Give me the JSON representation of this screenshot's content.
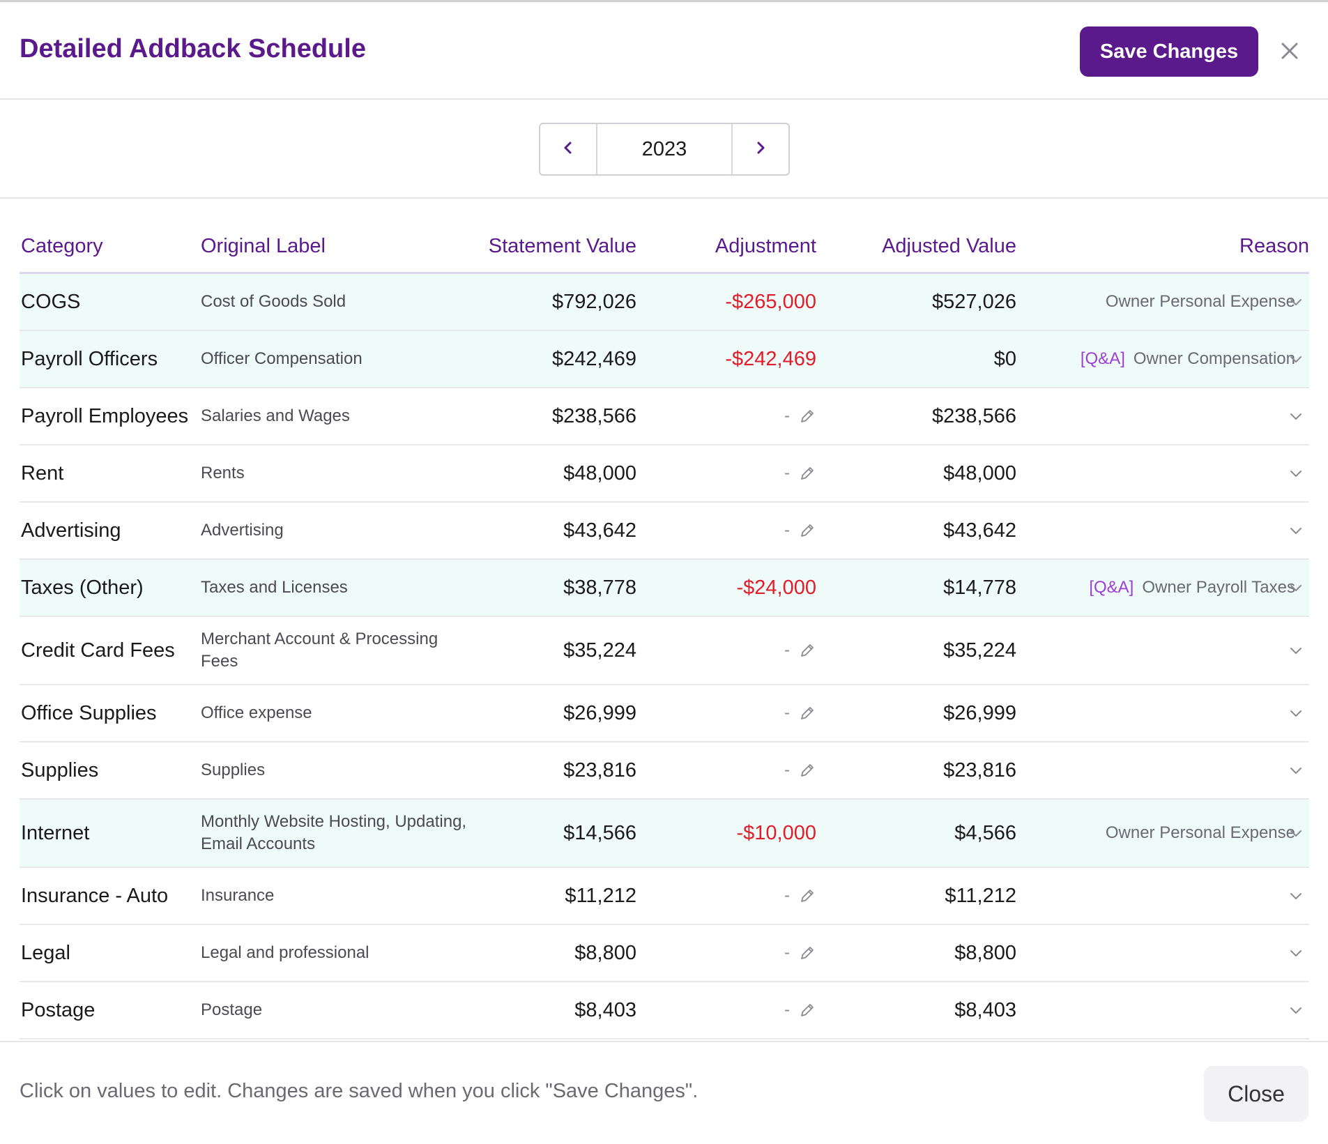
{
  "header": {
    "title": "Detailed Addback Schedule",
    "save_label": "Save Changes",
    "close_icon": "close-icon"
  },
  "year_nav": {
    "year": "2023",
    "prev_icon": "chevron-left-icon",
    "next_icon": "chevron-right-icon"
  },
  "table": {
    "columns": [
      "Category",
      "Original Label",
      "Statement Value",
      "Adjustment",
      "Adjusted Value",
      "Reason"
    ],
    "rows": [
      {
        "category": "COGS",
        "original": "Cost of Goods Sold",
        "statement": "$792,026",
        "adjustment": "-$265,000",
        "adjusted": "$527,026",
        "qa": "",
        "reason": "Owner Personal Expense"
      },
      {
        "category": "Payroll Officers",
        "original": "Officer Compensation",
        "statement": "$242,469",
        "adjustment": "-$242,469",
        "adjusted": "$0",
        "qa": "[Q&A]",
        "reason": "Owner Compensation"
      },
      {
        "category": "Payroll Employees",
        "original": "Salaries and Wages",
        "statement": "$238,566",
        "adjustment": "-",
        "adjusted": "$238,566",
        "qa": "",
        "reason": ""
      },
      {
        "category": "Rent",
        "original": "Rents",
        "statement": "$48,000",
        "adjustment": "-",
        "adjusted": "$48,000",
        "qa": "",
        "reason": ""
      },
      {
        "category": "Advertising",
        "original": "Advertising",
        "statement": "$43,642",
        "adjustment": "-",
        "adjusted": "$43,642",
        "qa": "",
        "reason": ""
      },
      {
        "category": "Taxes (Other)",
        "original": "Taxes and Licenses",
        "statement": "$38,778",
        "adjustment": "-$24,000",
        "adjusted": "$14,778",
        "qa": "[Q&A]",
        "reason": "Owner Payroll Taxes"
      },
      {
        "category": "Credit Card Fees",
        "original": "Merchant Account & Processing Fees",
        "statement": "$35,224",
        "adjustment": "-",
        "adjusted": "$35,224",
        "qa": "",
        "reason": ""
      },
      {
        "category": "Office Supplies",
        "original": "Office expense",
        "statement": "$26,999",
        "adjustment": "-",
        "adjusted": "$26,999",
        "qa": "",
        "reason": ""
      },
      {
        "category": "Supplies",
        "original": "Supplies",
        "statement": "$23,816",
        "adjustment": "-",
        "adjusted": "$23,816",
        "qa": "",
        "reason": ""
      },
      {
        "category": "Internet",
        "original": "Monthly Website Hosting, Updating, Email Accounts",
        "statement": "$14,566",
        "adjustment": "-$10,000",
        "adjusted": "$4,566",
        "qa": "",
        "reason": "Owner Personal Expense"
      },
      {
        "category": "Insurance - Auto",
        "original": "Insurance",
        "statement": "$11,212",
        "adjustment": "-",
        "adjusted": "$11,212",
        "qa": "",
        "reason": ""
      },
      {
        "category": "Legal",
        "original": "Legal and professional",
        "statement": "$8,800",
        "adjustment": "-",
        "adjusted": "$8,800",
        "qa": "",
        "reason": ""
      },
      {
        "category": "Postage",
        "original": "Postage",
        "statement": "$8,403",
        "adjustment": "-",
        "adjusted": "$8,403",
        "qa": "",
        "reason": ""
      }
    ]
  },
  "footer": {
    "note": "Click on values to edit. Changes are saved when you click \"Save Changes\".",
    "close_label": "Close"
  },
  "colors": {
    "brand": "#5b1a8c",
    "negative": "#e11d2a",
    "highlight_row": "#effbf8",
    "qa_tag": "#9b3fd6"
  }
}
